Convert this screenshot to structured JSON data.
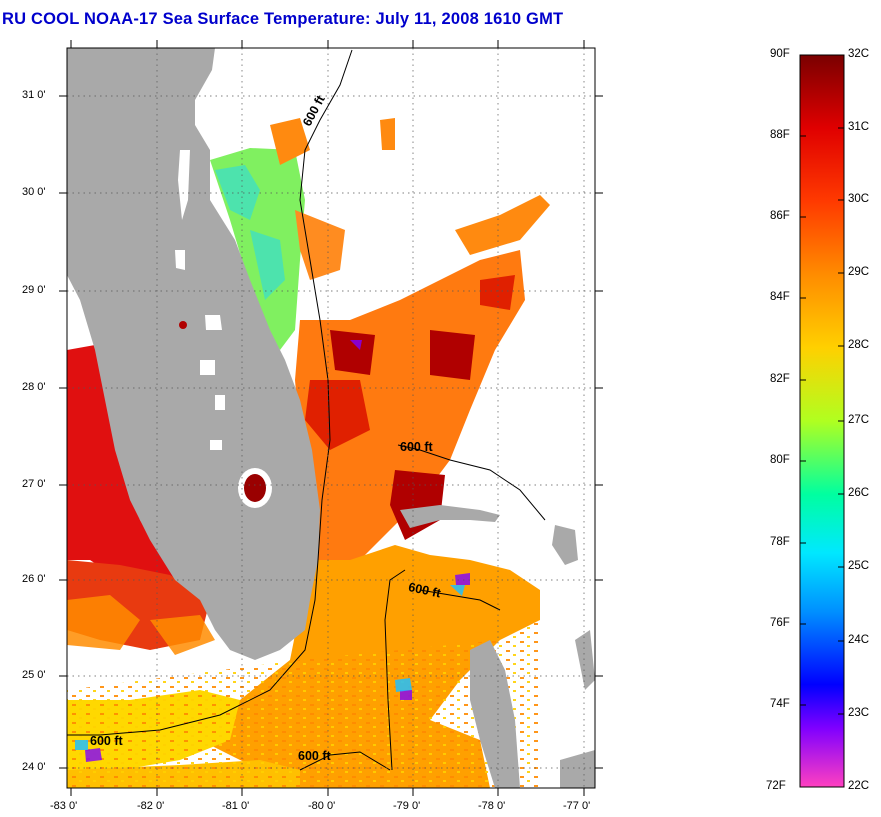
{
  "title": "RU COOL  NOAA-17  Sea Surface Temperature:  July 11, 2008 1610 GMT",
  "map": {
    "lat_ticks": [
      "31 0'",
      "30 0'",
      "29 0'",
      "28 0'",
      "27 0'",
      "26 0'",
      "25 0'",
      "24 0'"
    ],
    "lon_ticks": [
      "-83 0'",
      "-82 0'",
      "-81 0'",
      "-80 0'",
      "-79 0'",
      "-78 0'",
      "-77 0'"
    ],
    "contour_labels": [
      "600 ft",
      "600 ft",
      "600 ft",
      "600 ft",
      "600 ft"
    ],
    "colors": {
      "land": "#a9a9a9",
      "no_data": "#ffffff",
      "contour": "#000000"
    }
  },
  "colorbar": {
    "fahrenheit": [
      "90F",
      "88F",
      "86F",
      "84F",
      "82F",
      "80F",
      "78F",
      "76F",
      "74F",
      "72F"
    ],
    "celsius": [
      "32C",
      "31C",
      "30C",
      "29C",
      "28C",
      "27C",
      "26C",
      "25C",
      "24C",
      "23C",
      "22C"
    ],
    "gradient": [
      "#7a0000",
      "#e00000",
      "#ff4000",
      "#ff8c00",
      "#ffd200",
      "#ffff00",
      "#7fff00",
      "#00ffa0",
      "#00e0ff",
      "#0080ff",
      "#0000ff",
      "#8000ff",
      "#ff40c0"
    ]
  }
}
